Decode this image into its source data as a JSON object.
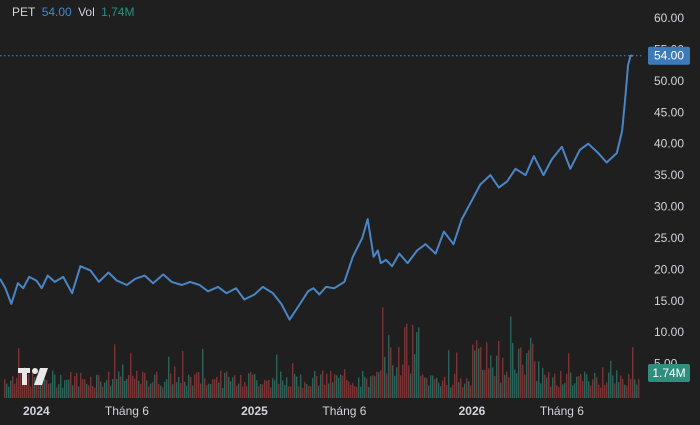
{
  "legend": {
    "symbol": "PET",
    "price": "54.00",
    "vol_label": "Vol",
    "vol_value": "1,74M"
  },
  "colors": {
    "background": "#1f1f1f",
    "price_line": "#4a86c5",
    "price_tag": "#3d7ab8",
    "volume_tag": "#2e8f7e",
    "volume_up": "#2f6f63",
    "volume_down": "#8a3a3a",
    "text": "#d1d4dc"
  },
  "badges": {
    "last_price": "54.00",
    "last_volume": "1.74M"
  },
  "chart_data": {
    "type": "line",
    "title": "",
    "series": [
      {
        "values_x": [
          "2023-11-01",
          "2023-11-10",
          "2023-11-20",
          "2023-12-01",
          "2023-12-10",
          "2023-12-20",
          "2024-01-01",
          "2024-01-10",
          "2024-01-20",
          "2024-02-01",
          "2024-02-15",
          "2024-03-01",
          "2024-03-15",
          "2024-04-01",
          "2024-04-15",
          "2024-05-01",
          "2024-05-15",
          "2024-06-01",
          "2024-06-15",
          "2024-07-01",
          "2024-07-15",
          "2024-08-01",
          "2024-08-15",
          "2024-09-01",
          "2024-09-15",
          "2024-10-01",
          "2024-10-15",
          "2024-11-01",
          "2024-11-15",
          "2024-12-01",
          "2024-12-15",
          "2025-01-01",
          "2025-01-15",
          "2025-02-01",
          "2025-02-15",
          "2025-03-01",
          "2025-03-15",
          "2025-04-01",
          "2025-04-10",
          "2025-04-20",
          "2025-05-01",
          "2025-05-15",
          "2025-06-01",
          "2025-06-15",
          "2025-07-01",
          "2025-07-10",
          "2025-07-20",
          "2025-07-27",
          "2025-08-01",
          "2025-08-10",
          "2025-08-20",
          "2025-09-01",
          "2025-09-15",
          "2025-10-01",
          "2025-10-15",
          "2025-11-01",
          "2025-11-15",
          "2025-12-01",
          "2025-12-15",
          "2026-01-01",
          "2026-01-15",
          "2026-02-01",
          "2026-02-15",
          "2026-03-01",
          "2026-03-15",
          "2026-04-01",
          "2026-04-15",
          "2026-05-01",
          "2026-05-15",
          "2026-06-01",
          "2026-06-15",
          "2026-07-01",
          "2026-07-15",
          "2026-08-01",
          "2026-08-15",
          "2026-09-01",
          "2026-09-10",
          "2026-09-15",
          "2026-09-20",
          "2026-09-24",
          "2026-09-28"
        ],
        "values": [
          18.5,
          17.0,
          14.5,
          17.8,
          17.0,
          18.8,
          18.2,
          17.0,
          19.0,
          18.0,
          18.8,
          16.2,
          20.5,
          19.8,
          18.0,
          19.5,
          18.2,
          17.5,
          18.5,
          19.0,
          17.8,
          19.2,
          18.0,
          17.5,
          18.0,
          17.5,
          16.5,
          17.2,
          16.2,
          17.0,
          15.2,
          16.0,
          17.2,
          16.2,
          14.5,
          12.0,
          14.0,
          16.5,
          17.0,
          16.0,
          17.2,
          17.0,
          18.0,
          22.0,
          25.0,
          28.0,
          22.0,
          23.0,
          21.0,
          21.5,
          20.5,
          22.5,
          21.0,
          23.0,
          24.0,
          22.5,
          26.0,
          24.0,
          28.0,
          31.0,
          33.5,
          35.0,
          33.0,
          34.0,
          36.0,
          35.0,
          38.0,
          35.0,
          37.5,
          39.5,
          36.0,
          39.0,
          40.0,
          38.5,
          37.0,
          38.5,
          42.0,
          47.0,
          52.5,
          54.0,
          54.0
        ],
        "name": ""
      }
    ],
    "ylim": [
      0,
      60
    ],
    "y_ticks": [
      "5.00",
      "10.00",
      "15.00",
      "20.00",
      "25.00",
      "30.00",
      "35.00",
      "40.00",
      "45.00",
      "50.00",
      "55.00",
      "60.00"
    ],
    "x_ticks": [
      {
        "label": "2024",
        "date": "2024-01-01",
        "bold": true
      },
      {
        "label": "Tháng 6",
        "date": "2024-06-01",
        "bold": false
      },
      {
        "label": "2025",
        "date": "2025-01-01",
        "bold": true
      },
      {
        "label": "Tháng 6",
        "date": "2025-06-01",
        "bold": false
      },
      {
        "label": "2026",
        "date": "2026-01-01",
        "bold": true
      },
      {
        "label": "Tháng 6",
        "date": "2026-06-01",
        "bold": false
      }
    ],
    "x_range": [
      "2023-11-01",
      "2026-10-10"
    ],
    "last_value": 54.0,
    "volume_bars": "dense multicolor histogram along the bottom",
    "grid": false,
    "legend_position": "top-left"
  }
}
